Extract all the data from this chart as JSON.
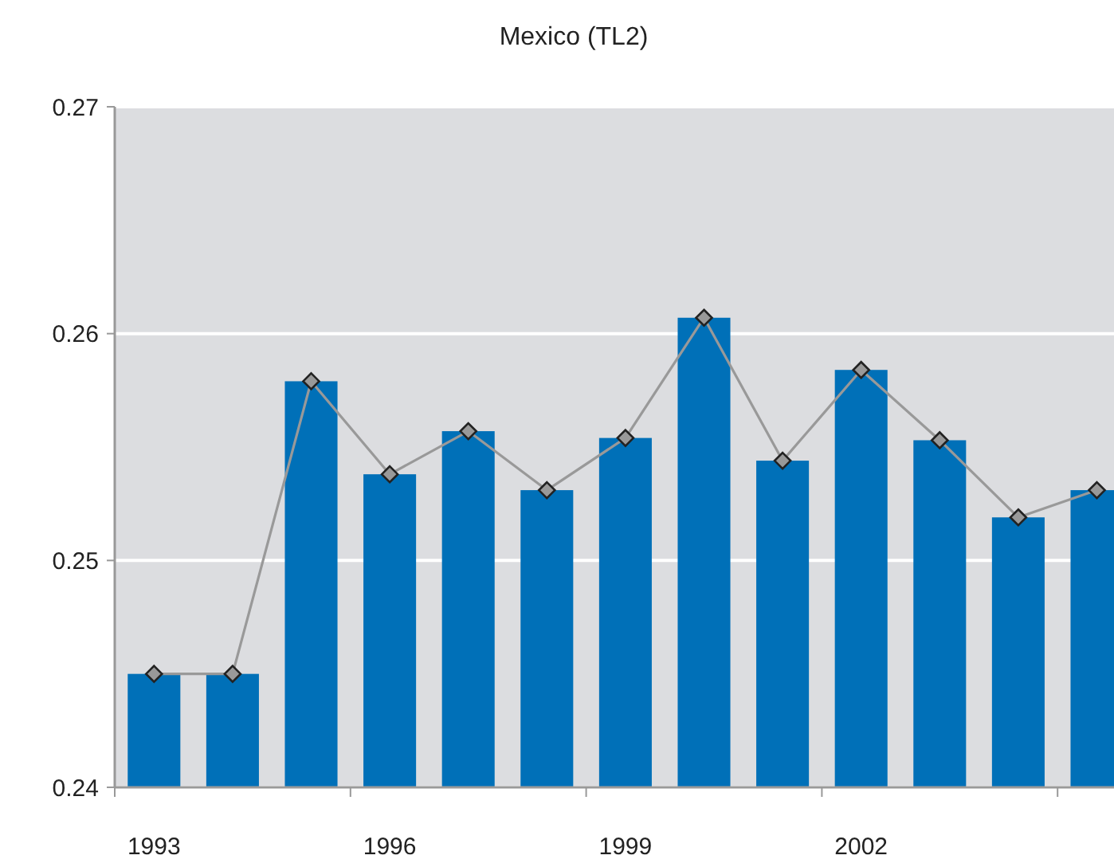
{
  "chart_data": {
    "type": "bar",
    "title": "Mexico (TL2)",
    "categories": [
      "1993",
      null,
      null,
      "1996",
      null,
      null,
      "1999",
      null,
      null,
      "2002",
      null,
      null,
      null
    ],
    "series": [
      {
        "color": "#0070b8",
        "values": [
          0.245,
          0.245,
          0.2579,
          0.2538,
          0.2557,
          0.2531,
          0.2554,
          0.2607,
          0.2544,
          0.2584,
          0.2553,
          0.2519,
          0.2531
        ]
      },
      {
        "type": "line",
        "color": "#999999",
        "marker": "diamond",
        "values": [
          0.245,
          0.245,
          0.2579,
          0.2538,
          0.2557,
          0.2531,
          0.2554,
          0.2607,
          0.2544,
          0.2584,
          0.2553,
          0.2519,
          0.2531
        ]
      }
    ],
    "ylim": [
      0.24,
      0.27
    ],
    "yticks": [
      0.24,
      0.25,
      0.26,
      0.27
    ],
    "grid": "y"
  }
}
